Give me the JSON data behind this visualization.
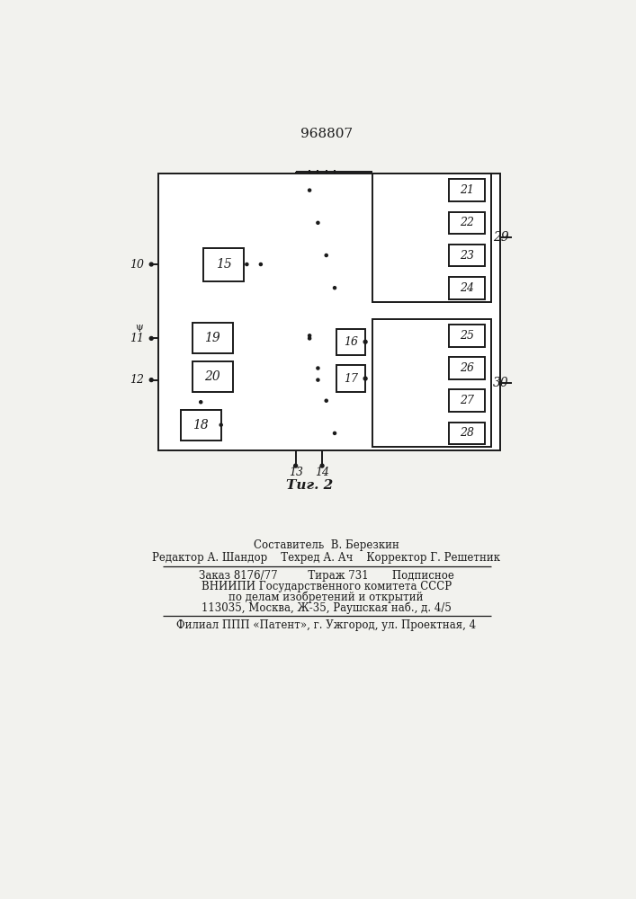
{
  "title": "968807",
  "fig_label": "Τиг. 2",
  "background_color": "#f2f2ee",
  "line_color": "#1a1a1a",
  "footer_lines": [
    "Составитель  В. Березкин",
    "Редактор А. Шандор    Техред А. Ач    Корректор Г. Решетник",
    "Заказ 8176/77         Тираж 731       Подписное",
    "ВНИИПИ Государственного комитета СССР",
    "по делам изобретений и открытий",
    "113035, Москва, Ж-35, Раушская наб., д. 4/5",
    "Филиал ППП «Патент», г. Ужгород, ул. Проектная, 4"
  ]
}
